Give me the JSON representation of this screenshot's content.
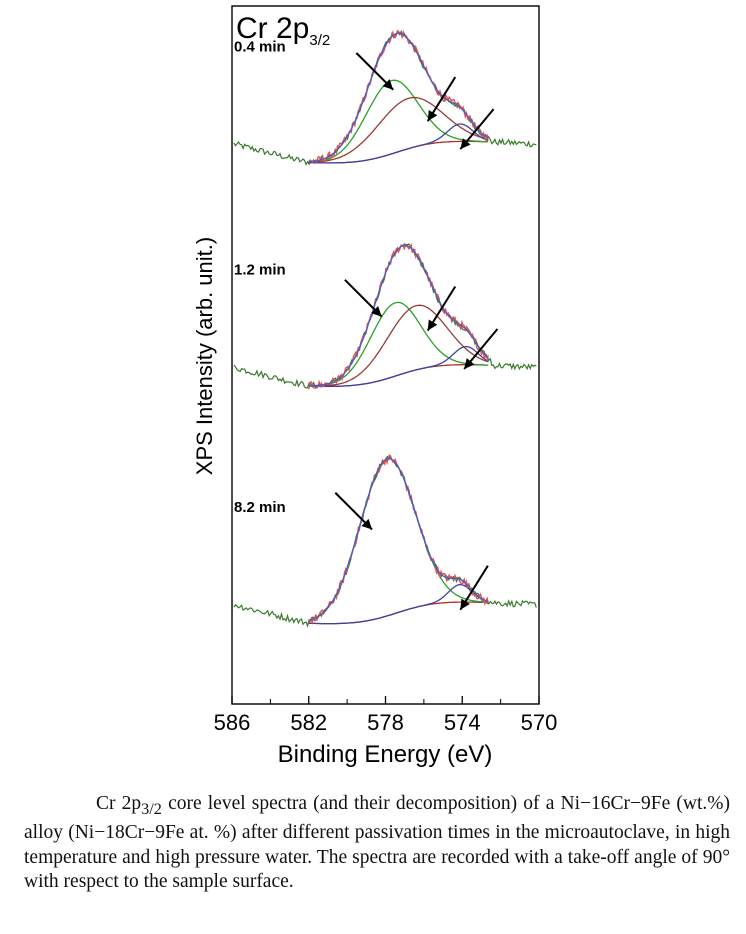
{
  "chart_data": {
    "type": "line",
    "title": "Cr 2p",
    "title_subscript": "3/2",
    "xlabel": "Binding Energy (eV)",
    "ylabel": "XPS Intensity (arb. unit.)",
    "xlim": [
      586,
      570
    ],
    "x_reversed": true,
    "ylim": [
      0,
      100
    ],
    "x_ticks": [
      586,
      582,
      578,
      574,
      570
    ],
    "x_tick_labels": [
      "586",
      "582",
      "578",
      "574",
      "570"
    ],
    "grid": false,
    "colors": {
      "raw": "#3a7a2c",
      "experimental": "#e8504a",
      "envelope": "#4060d0",
      "background": "#b03028",
      "metallic": "#4040a0",
      "oxide": "#2ca02c",
      "hydroxide": "#9a3a3a",
      "arrow": "#000000"
    },
    "panels": [
      {
        "label": "0.4 min",
        "baseline": 76,
        "components": [
          {
            "name": "oxide",
            "color_key": "oxide",
            "center": 577.7,
            "height": 10.5,
            "width": 1.35
          },
          {
            "name": "hydroxide",
            "color_key": "hydroxide",
            "center": 576.8,
            "height": 7.2,
            "width": 1.7
          },
          {
            "name": "metallic",
            "color_key": "metallic",
            "center": 574.1,
            "height": 2.5,
            "width": 0.65
          }
        ],
        "arrows": [
          {
            "x": 577.6,
            "y": 88
          },
          {
            "x": 575.8,
            "y": 83.5
          },
          {
            "x": 574.1,
            "y": 79.5
          }
        ]
      },
      {
        "label": "1.2 min",
        "baseline": 44,
        "components": [
          {
            "name": "oxide",
            "color_key": "oxide",
            "center": 577.5,
            "height": 10.5,
            "width": 1.3
          },
          {
            "name": "hydroxide",
            "color_key": "hydroxide",
            "center": 576.4,
            "height": 9.2,
            "width": 1.55
          },
          {
            "name": "metallic",
            "color_key": "metallic",
            "center": 573.8,
            "height": 2.6,
            "width": 0.65
          }
        ],
        "arrows": [
          {
            "x": 578.2,
            "y": 55.5
          },
          {
            "x": 575.8,
            "y": 53.5
          },
          {
            "x": 573.9,
            "y": 48
          }
        ]
      },
      {
        "label": "8.2 min",
        "baseline": 10,
        "components": [
          {
            "name": "oxide",
            "color_key": "oxide",
            "center": 577.9,
            "height": 22.5,
            "width": 1.45
          },
          {
            "name": "metallic",
            "color_key": "metallic",
            "center": 574.1,
            "height": 2.5,
            "width": 0.6
          }
        ],
        "arrows": [
          {
            "x": 578.7,
            "y": 25
          },
          {
            "x": 574.1,
            "y": 13.5
          }
        ]
      }
    ]
  },
  "caption": {
    "segments": [
      {
        "text": "Cr 2p"
      },
      {
        "text": "3/2",
        "sub": true
      },
      {
        "text": " core level spectra (and their decomposition) of a Ni−16Cr−9Fe (wt.%) alloy (Ni−18Cr−9Fe at. %) after different passivation times in the microautoclave, in high temperature and high pressure water. The spectra are recorded with a take-off angle of 90° with respect to the sample surface."
      }
    ]
  }
}
